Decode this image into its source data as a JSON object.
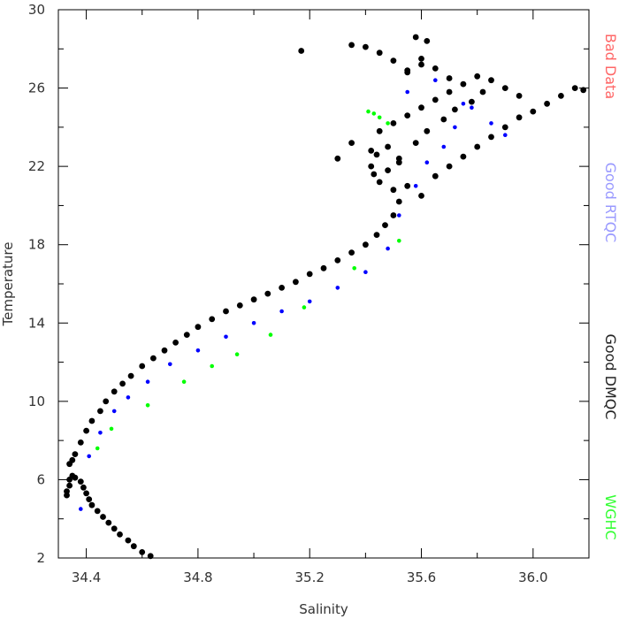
{
  "chart_data": {
    "type": "scatter",
    "xlabel": "Salinity",
    "ylabel": "Temperature",
    "xlim": [
      34.3,
      36.2
    ],
    "ylim": [
      2,
      30
    ],
    "xticks": [
      34.4,
      34.8,
      35.2,
      35.6,
      36.0
    ],
    "xtick_labels": [
      "34.4",
      "34.8",
      "35.2",
      "35.6",
      "36.0"
    ],
    "yticks": [
      2,
      6,
      10,
      14,
      18,
      22,
      26,
      30
    ],
    "ytick_labels": [
      "2",
      "6",
      "10",
      "14",
      "18",
      "22",
      "26",
      "30"
    ],
    "grid": false,
    "legend_position": "right side, vertical text",
    "legend": [
      {
        "label": "Bad Data",
        "color": "#ff6666"
      },
      {
        "label": "Good RTQC",
        "color": "#9999ff"
      },
      {
        "label": "Good DMQC",
        "color": "#222222"
      },
      {
        "label": "WGHC",
        "color": "#33ff33"
      }
    ],
    "series": [
      {
        "name": "Good DMQC",
        "color": "#000000",
        "x": [
          34.63,
          34.6,
          34.57,
          34.55,
          34.52,
          34.5,
          34.48,
          34.46,
          34.44,
          34.42,
          34.41,
          34.4,
          34.39,
          34.38,
          34.36,
          34.35,
          34.34,
          34.34,
          34.33,
          34.33,
          34.34,
          34.36,
          34.35,
          34.38,
          34.4,
          34.42,
          34.45,
          34.47,
          34.5,
          34.53,
          34.56,
          34.6,
          34.64,
          34.68,
          34.72,
          34.76,
          34.8,
          34.85,
          34.9,
          34.95,
          35.0,
          35.05,
          35.1,
          35.15,
          35.2,
          35.25,
          35.3,
          35.35,
          35.4,
          35.44,
          35.47,
          35.5,
          35.52,
          35.5,
          35.45,
          35.43,
          35.42,
          35.44,
          35.48,
          35.52,
          35.55,
          35.6,
          35.65,
          35.7,
          35.75,
          35.8,
          35.85,
          35.9,
          35.95,
          36.0,
          36.05,
          36.1,
          36.15,
          35.45,
          35.5,
          35.55,
          35.6,
          35.65,
          35.7,
          35.75,
          35.8,
          35.85,
          35.9,
          35.95,
          35.48,
          35.52,
          35.58,
          35.62,
          35.68,
          35.72,
          35.78,
          35.82,
          35.55,
          35.6,
          35.65,
          35.7,
          35.35,
          35.4,
          35.45,
          35.5,
          35.55,
          35.6,
          35.62,
          35.58,
          35.17,
          35.35,
          35.3,
          35.42,
          36.18
        ],
        "y": [
          2.1,
          2.3,
          2.6,
          2.9,
          3.2,
          3.5,
          3.8,
          4.1,
          4.4,
          4.7,
          5.0,
          5.3,
          5.6,
          5.9,
          6.1,
          6.2,
          6.0,
          5.7,
          5.4,
          5.2,
          6.8,
          7.3,
          7.0,
          7.9,
          8.5,
          9.0,
          9.5,
          10.0,
          10.5,
          10.9,
          11.3,
          11.8,
          12.2,
          12.6,
          13.0,
          13.4,
          13.8,
          14.2,
          14.6,
          14.9,
          15.2,
          15.5,
          15.8,
          16.1,
          16.5,
          16.8,
          17.2,
          17.6,
          18.0,
          18.5,
          19.0,
          19.5,
          20.2,
          20.8,
          21.2,
          21.6,
          22.0,
          22.6,
          23.0,
          22.2,
          21.0,
          20.5,
          21.5,
          22.0,
          22.5,
          23.0,
          23.5,
          24.0,
          24.5,
          24.8,
          25.2,
          25.6,
          26.0,
          23.8,
          24.2,
          24.6,
          25.0,
          25.4,
          25.8,
          26.2,
          26.6,
          26.4,
          26.0,
          25.6,
          21.8,
          22.4,
          23.2,
          23.8,
          24.4,
          24.9,
          25.3,
          25.8,
          26.8,
          27.2,
          27.0,
          26.5,
          28.2,
          28.1,
          27.8,
          27.4,
          26.9,
          27.5,
          28.4,
          28.6,
          27.9,
          23.2,
          22.4,
          22.8,
          25.9
        ]
      },
      {
        "name": "Good RTQC",
        "color": "#0000ff",
        "x": [
          34.38,
          34.41,
          34.45,
          34.5,
          34.55,
          34.62,
          34.7,
          34.8,
          34.9,
          35.0,
          35.1,
          35.2,
          35.3,
          35.4,
          35.48,
          35.52,
          35.58,
          35.62,
          35.68,
          35.72,
          35.78,
          35.85,
          35.9,
          35.55,
          35.65,
          35.75
        ],
        "y": [
          4.5,
          7.2,
          8.4,
          9.5,
          10.2,
          11.0,
          11.9,
          12.6,
          13.3,
          14.0,
          14.6,
          15.1,
          15.8,
          16.6,
          17.8,
          19.5,
          21.0,
          22.2,
          23.0,
          24.0,
          25.0,
          24.2,
          23.6,
          25.8,
          26.4,
          25.2
        ]
      },
      {
        "name": "WGHC",
        "color": "#00ff00",
        "x": [
          34.44,
          34.49,
          34.62,
          34.75,
          34.85,
          34.94,
          35.06,
          35.18,
          35.36,
          35.52,
          35.41,
          35.43,
          35.45,
          35.48
        ],
        "y": [
          7.6,
          8.6,
          9.8,
          11.0,
          11.8,
          12.4,
          13.4,
          14.8,
          16.8,
          18.2,
          24.8,
          24.7,
          24.5,
          24.2
        ]
      }
    ]
  }
}
